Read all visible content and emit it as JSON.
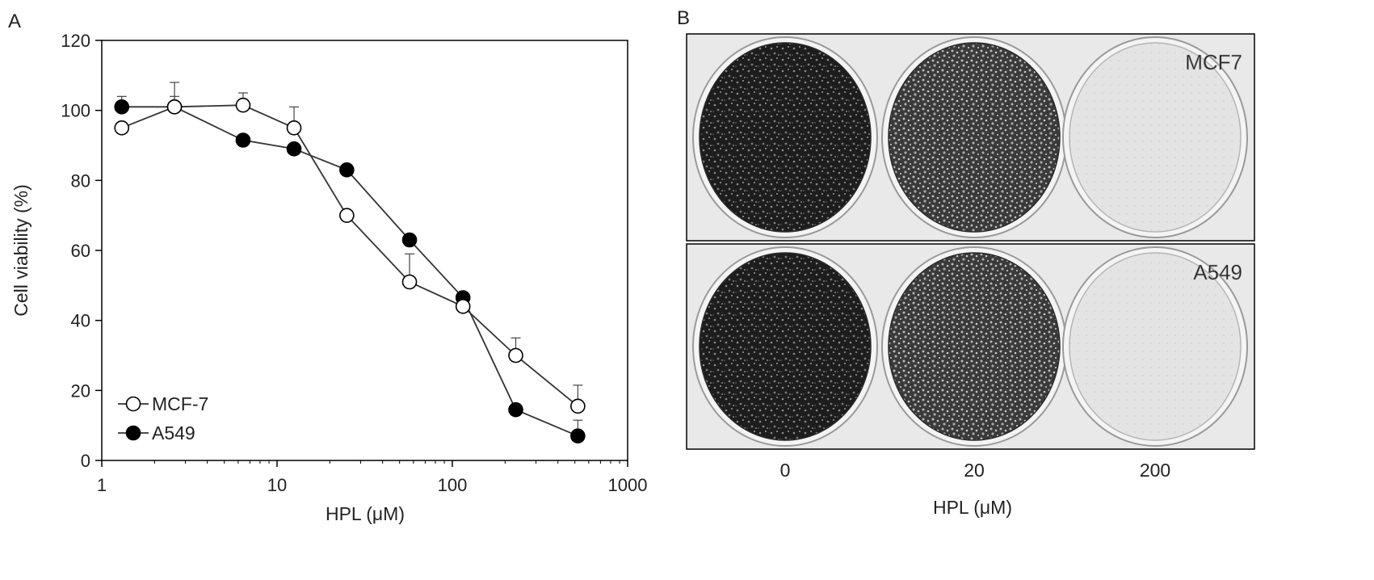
{
  "panel_a": {
    "letter": "A",
    "chart_data": {
      "type": "line",
      "xscale": "log",
      "xlim": [
        1,
        1000
      ],
      "ylim": [
        0,
        120
      ],
      "xticks": [
        1,
        10,
        100,
        1000
      ],
      "xtick_labels": [
        "1",
        "10",
        "100",
        "1000"
      ],
      "yticks": [
        0,
        20,
        40,
        60,
        80,
        100,
        120
      ],
      "ytick_labels": [
        "0",
        "20",
        "40",
        "60",
        "80",
        "100",
        "120"
      ],
      "xlabel": "HPL (μM)",
      "ylabel": "Cell viability (%)",
      "grid": false,
      "legend_position": "bottom-left",
      "series": [
        {
          "name": "MCF-7",
          "marker": "open-circle",
          "x": [
            1.3,
            2.6,
            6.4,
            12.5,
            25,
            57,
            115,
            230,
            520
          ],
          "y": [
            95,
            101,
            101.5,
            95,
            70,
            51,
            44,
            30,
            15.5
          ],
          "err": [
            0,
            7,
            3.5,
            6,
            0,
            8,
            0,
            5,
            6
          ]
        },
        {
          "name": "A549",
          "marker": "filled-circle",
          "x": [
            1.3,
            2.6,
            6.4,
            12.5,
            25,
            57,
            115,
            230,
            520
          ],
          "y": [
            101,
            101,
            91.5,
            89,
            83,
            63,
            46.5,
            14.5,
            7
          ],
          "err": [
            3,
            3,
            0,
            0,
            0,
            1,
            1,
            0,
            4.5
          ]
        }
      ]
    }
  },
  "panel_b": {
    "letter": "B",
    "rows": [
      {
        "label": "MCF7"
      },
      {
        "label": "A549"
      }
    ],
    "well_shades": [
      "#1e1e1e",
      "#4a4a4a",
      "#e6e6e6"
    ],
    "xtick_labels": [
      "0",
      "20",
      "200"
    ],
    "xlabel": "HPL (μM)"
  }
}
